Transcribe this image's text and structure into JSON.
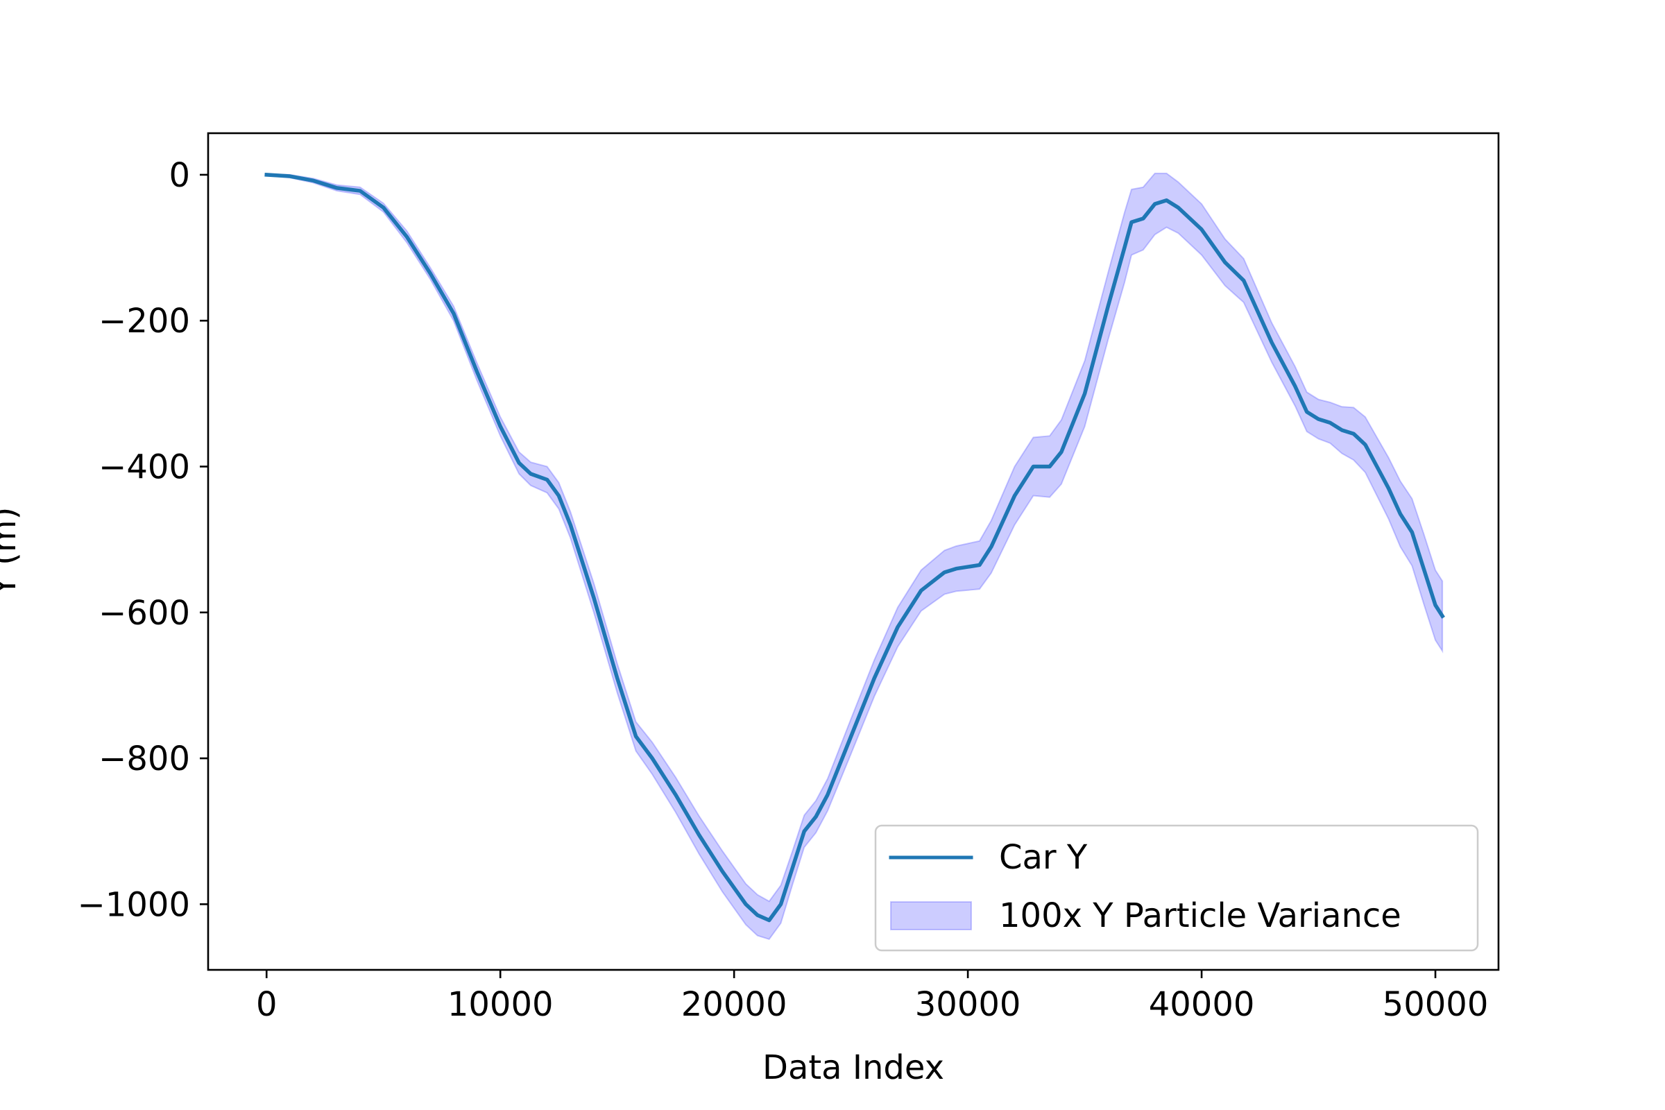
{
  "chart_data": {
    "type": "line",
    "title": "",
    "xlabel": "Data Index",
    "ylabel": "Y (m)",
    "xlim": [
      -2500,
      52700
    ],
    "ylim": [
      -1090,
      57
    ],
    "xticks": [
      0,
      10000,
      20000,
      30000,
      40000,
      50000
    ],
    "xtick_labels": [
      "0",
      "10000",
      "20000",
      "30000",
      "40000",
      "50000"
    ],
    "yticks": [
      0,
      -200,
      -400,
      -600,
      -800,
      -1000
    ],
    "ytick_labels": [
      "0",
      "−200",
      "−400",
      "−600",
      "−800",
      "−1000"
    ],
    "grid": false,
    "legend_position": "lower right",
    "series": [
      {
        "name": "Car Y",
        "style": "line",
        "color": "#1f77b4",
        "x": [
          0,
          1000,
          2000,
          3000,
          4000,
          5000,
          6000,
          7000,
          8000,
          9000,
          10000,
          10800,
          11300,
          12000,
          12500,
          13000,
          14000,
          15000,
          15800,
          16500,
          17500,
          18500,
          19500,
          20500,
          21000,
          21500,
          22000,
          22500,
          23000,
          23500,
          24000,
          25000,
          26000,
          27000,
          28000,
          29000,
          29500,
          30500,
          31000,
          32000,
          32800,
          33500,
          34000,
          35000,
          36000,
          36700,
          37000,
          37500,
          38000,
          38500,
          39000,
          40000,
          41000,
          41800,
          43000,
          44000,
          44500,
          45000,
          45500,
          46000,
          46500,
          47000,
          47500,
          48000,
          48500,
          49000,
          49500,
          50000,
          50300
        ],
        "y": [
          0,
          -2,
          -8,
          -18,
          -22,
          -45,
          -85,
          -135,
          -190,
          -270,
          -345,
          -395,
          -410,
          -418,
          -440,
          -480,
          -580,
          -690,
          -770,
          -800,
          -850,
          -905,
          -955,
          -1000,
          -1015,
          -1022,
          -1000,
          -950,
          -900,
          -880,
          -850,
          -770,
          -690,
          -620,
          -570,
          -545,
          -540,
          -535,
          -510,
          -440,
          -400,
          -400,
          -380,
          -300,
          -180,
          -100,
          -65,
          -60,
          -40,
          -35,
          -45,
          -75,
          -120,
          -145,
          -230,
          -290,
          -325,
          -335,
          -340,
          -350,
          -355,
          -370,
          -400,
          -430,
          -465,
          -490,
          -540,
          -590,
          -605
        ]
      },
      {
        "name": "100x Y Particle Variance",
        "style": "band",
        "color": "#0000ff",
        "alpha": 0.2,
        "x": [
          0,
          1000,
          2000,
          3000,
          4000,
          5000,
          6000,
          7000,
          8000,
          9000,
          10000,
          10800,
          11300,
          12000,
          12500,
          13000,
          14000,
          15000,
          15800,
          16500,
          17500,
          18500,
          19500,
          20500,
          21000,
          21500,
          22000,
          22500,
          23000,
          23500,
          24000,
          25000,
          26000,
          27000,
          28000,
          29000,
          29500,
          30500,
          31000,
          32000,
          32800,
          33500,
          34000,
          35000,
          36000,
          36700,
          37000,
          37500,
          38000,
          38500,
          39000,
          40000,
          41000,
          41800,
          43000,
          44000,
          44500,
          45000,
          45500,
          46000,
          46500,
          47000,
          47500,
          48000,
          48500,
          49000,
          49500,
          50000,
          50300
        ],
        "lower": [
          -1,
          -4,
          -11,
          -22,
          -27,
          -51,
          -93,
          -143,
          -200,
          -282,
          -358,
          -410,
          -426,
          -436,
          -458,
          -498,
          -600,
          -710,
          -790,
          -822,
          -874,
          -931,
          -983,
          -1028,
          -1043,
          -1048,
          -1026,
          -973,
          -922,
          -902,
          -872,
          -794,
          -715,
          -647,
          -598,
          -575,
          -571,
          -568,
          -546,
          -480,
          -440,
          -442,
          -424,
          -345,
          -226,
          -148,
          -110,
          -103,
          -82,
          -72,
          -80,
          -110,
          -152,
          -175,
          -257,
          -317,
          -352,
          -362,
          -368,
          -382,
          -391,
          -408,
          -440,
          -472,
          -510,
          -536,
          -588,
          -638,
          -653
        ],
        "upper": [
          1,
          0,
          -5,
          -14,
          -17,
          -39,
          -77,
          -127,
          -180,
          -258,
          -332,
          -380,
          -394,
          -400,
          -422,
          -462,
          -560,
          -670,
          -750,
          -778,
          -826,
          -879,
          -927,
          -972,
          -987,
          -996,
          -974,
          -927,
          -878,
          -858,
          -828,
          -746,
          -665,
          -593,
          -542,
          -515,
          -509,
          -502,
          -474,
          -400,
          -360,
          -358,
          -336,
          -255,
          -134,
          -52,
          -20,
          -17,
          2,
          2,
          -10,
          -40,
          -88,
          -115,
          -203,
          -263,
          -298,
          -308,
          -312,
          -318,
          -319,
          -332,
          -360,
          -388,
          -420,
          -444,
          -492,
          -542,
          -557
        ]
      }
    ]
  }
}
